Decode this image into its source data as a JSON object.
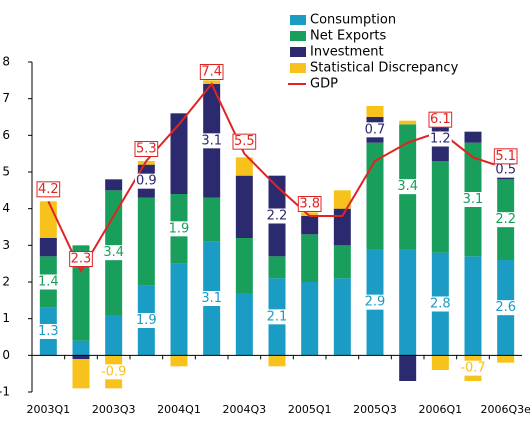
{
  "chart_data": {
    "type": "stacked_bar_line",
    "categories": [
      "2003Q1",
      null,
      "2003Q3",
      null,
      "2004Q1",
      null,
      "2004Q3",
      null,
      "2005Q1",
      null,
      "2005Q3",
      null,
      "2006Q1",
      null,
      "2006Q3e"
    ],
    "series": [
      {
        "name": "Consumption",
        "color": "#1b9cc4",
        "kind": "bar",
        "values": [
          1.3,
          0.4,
          1.1,
          1.9,
          2.5,
          3.1,
          1.7,
          2.1,
          2.0,
          2.1,
          2.9,
          2.9,
          2.8,
          2.7,
          2.6
        ],
        "value_labels": [
          "1.3",
          null,
          null,
          "1.9",
          null,
          "3.1",
          null,
          "2.1",
          null,
          null,
          "2.9",
          null,
          "2.8",
          null,
          "2.6"
        ]
      },
      {
        "name": "Net Exports",
        "color": "#1a9e5c",
        "kind": "bar",
        "values": [
          1.4,
          2.6,
          3.4,
          2.4,
          1.9,
          1.2,
          1.5,
          0.6,
          1.3,
          0.9,
          2.9,
          3.4,
          2.5,
          3.1,
          2.2
        ],
        "value_labels": [
          "1.4",
          null,
          "3.4",
          null,
          "1.9",
          null,
          null,
          null,
          null,
          null,
          null,
          "3.4",
          null,
          "3.1",
          "2.2"
        ]
      },
      {
        "name": "Investment",
        "color": "#2b2a6e",
        "kind": "bar",
        "values": [
          0.5,
          -0.1,
          0.3,
          0.9,
          2.2,
          3.1,
          1.7,
          2.2,
          0.5,
          1.0,
          0.7,
          -0.7,
          1.2,
          0.3,
          0.5
        ],
        "value_labels": [
          null,
          null,
          null,
          "0.9",
          null,
          "3.1",
          null,
          "2.2",
          null,
          null,
          "0.7",
          null,
          "1.2",
          null,
          "0.5"
        ]
      },
      {
        "name": "Statistical Discrepancy",
        "color": "#f7c21b",
        "kind": "bar",
        "values": [
          1.0,
          -0.8,
          -0.9,
          0.1,
          -0.3,
          0.1,
          0.5,
          -0.3,
          0.1,
          0.5,
          0.3,
          0.1,
          -0.4,
          -0.7,
          -0.2
        ],
        "value_labels": [
          null,
          null,
          "-0.9",
          null,
          null,
          null,
          null,
          null,
          null,
          null,
          null,
          null,
          null,
          "-0.7",
          null
        ]
      },
      {
        "name": "GDP",
        "color": "#e02424",
        "kind": "line",
        "values": [
          4.2,
          2.3,
          3.8,
          5.3,
          6.3,
          7.4,
          5.5,
          4.6,
          3.8,
          3.8,
          5.3,
          5.8,
          6.1,
          5.4,
          5.1
        ],
        "value_labels": [
          "4.2",
          "2.3",
          null,
          "5.3",
          null,
          "7.4",
          "5.5",
          null,
          "3.8",
          null,
          null,
          null,
          "6.1",
          null,
          "5.1"
        ]
      }
    ],
    "ylim": [
      -1,
      8
    ],
    "yticks": [
      -1,
      0,
      1,
      2,
      3,
      4,
      5,
      6,
      7,
      8
    ]
  }
}
